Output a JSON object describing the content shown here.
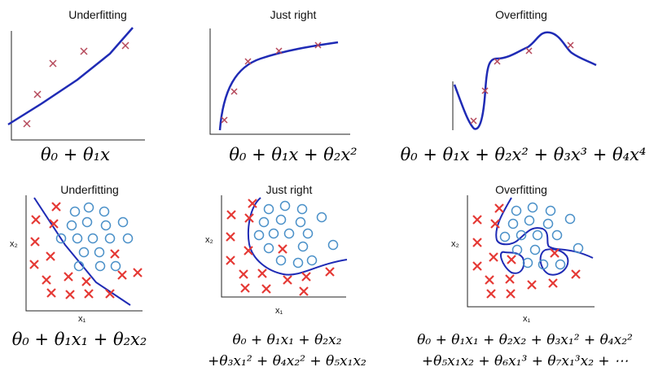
{
  "top_row": {
    "titles": [
      "Underfitting",
      "Just right",
      "Overfitting"
    ],
    "formulas": [
      "θ₀ + θ₁x",
      "θ₀ + θ₁x + θ₂x²",
      "θ₀ + θ₁x + θ₂x² + θ₃x³ + θ₄x⁴"
    ]
  },
  "bottom_row": {
    "titles": [
      "Underfitting",
      "Just right",
      "Overfitting"
    ],
    "axis_x": "x₁",
    "axis_y": "x₂",
    "formulas": [
      {
        "line1": "θ₀ + θ₁x₁ + θ₂x₂",
        "line2": ""
      },
      {
        "line1": "θ₀ + θ₁x₁ + θ₂x₂",
        "line2": "+θ₃x₁² + θ₄x₂² + θ₅x₁x₂"
      },
      {
        "line1": "θ₀ + θ₁x₁ + θ₂x₂ + θ₃x₁² + θ₄x₂²",
        "line2": "+θ₅x₁x₂ + θ₆x₁³ + θ₇x₁³x₂ + ⋯"
      }
    ]
  },
  "colors": {
    "cross": "#e53935",
    "cross_small": "#b5485a",
    "curve": "#1f2bb5",
    "circle": "#4a90c8",
    "axis": "#222222"
  }
}
